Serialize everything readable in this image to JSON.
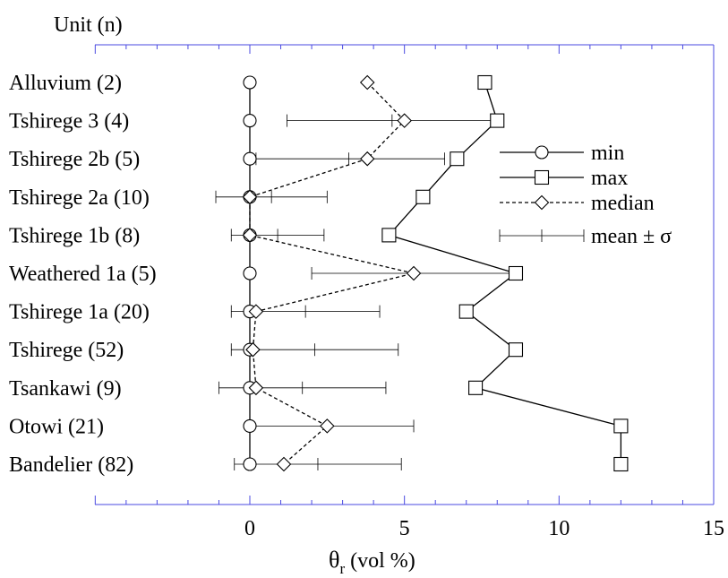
{
  "chart_data": {
    "type": "scatter",
    "unit_header": "Unit (n)",
    "categories": [
      "Alluvium (2)",
      "Tshirege 3 (4)",
      "Tshirege 2b (5)",
      "Tshirege 2a (10)",
      "Tshirege 1b (8)",
      "Weathered 1a (5)",
      "Tshirege 1a (20)",
      "Tshirege (52)",
      "Tsankawi (9)",
      "Otowi (21)",
      "Bandelier (82)"
    ],
    "xlabel_main": "θ",
    "xlabel_sub": "r",
    "xlabel_unit": " (vol %)",
    "xlim": [
      -5,
      15
    ],
    "xticks": [
      0,
      5,
      10,
      15
    ],
    "xtick_labels": [
      "0",
      "5",
      "10",
      "15"
    ],
    "grid": false,
    "legend_position": "right",
    "series": [
      {
        "name": "min",
        "marker": "circle",
        "line": "solid",
        "values": [
          0,
          0,
          0,
          0,
          0,
          0,
          0,
          0,
          0,
          0,
          0
        ]
      },
      {
        "name": "max",
        "marker": "square",
        "line": "solid",
        "values": [
          7.6,
          8.0,
          6.7,
          5.6,
          4.5,
          8.6,
          7.0,
          8.6,
          7.3,
          12.0,
          12.0
        ]
      },
      {
        "name": "median",
        "marker": "diamond",
        "line": "dashed",
        "values": [
          3.8,
          5.0,
          3.8,
          0.0,
          0.0,
          5.3,
          0.2,
          0.1,
          0.2,
          2.5,
          1.1
        ]
      },
      {
        "name": "mean ± σ",
        "marker": "errorbar",
        "line": "none",
        "mean": [
          null,
          4.6,
          3.2,
          0.7,
          0.9,
          5.3,
          1.8,
          2.1,
          1.7,
          2.5,
          2.2
        ],
        "lower": [
          null,
          1.2,
          0.2,
          -1.1,
          -0.6,
          2.0,
          -0.6,
          -0.6,
          -1.0,
          0.0,
          -0.5
        ],
        "upper": [
          null,
          8.0,
          6.3,
          2.5,
          2.4,
          8.6,
          4.2,
          4.8,
          4.4,
          5.3,
          4.9
        ]
      }
    ]
  }
}
